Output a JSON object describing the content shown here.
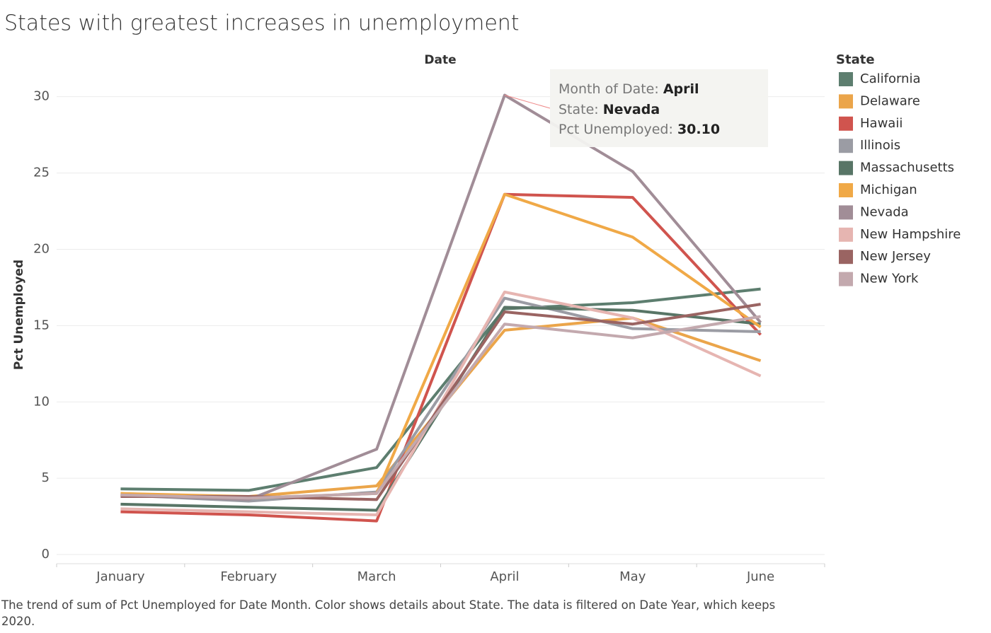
{
  "chart_data": {
    "type": "line",
    "title": "States with greatest increases in unemployment",
    "x_label": "Date",
    "y_label": "Pct Unemployed",
    "legend_title": "State",
    "legend_position": "right",
    "grid": true,
    "caption": "The trend of sum of Pct Unemployed for Date Month.  Color shows details about State. The data is filtered on Date Year, which keeps 2020.",
    "tooltip": {
      "month_label": "Month of Date:",
      "month": "April",
      "state_label": "State:",
      "state": "Nevada",
      "value_label": "Pct Unemployed:",
      "value": "30.10"
    },
    "categories": [
      "January",
      "February",
      "March",
      "April",
      "May",
      "June"
    ],
    "ylim": [
      -0.6,
      31.7
    ],
    "yticks": [
      0,
      5,
      10,
      15,
      20,
      25,
      30
    ],
    "series": [
      {
        "name": "California",
        "color": "#5d7e6f",
        "values": [
          4.3,
          4.2,
          5.7,
          16.1,
          16.5,
          17.4
        ]
      },
      {
        "name": "Delaware",
        "color": "#eba54a",
        "values": [
          4.0,
          3.8,
          4.5,
          14.7,
          15.5,
          12.7
        ]
      },
      {
        "name": "Hawaii",
        "color": "#d0544e",
        "values": [
          2.8,
          2.6,
          2.2,
          23.6,
          23.4,
          14.4
        ]
      },
      {
        "name": "Illinois",
        "color": "#9b9ca4",
        "values": [
          3.9,
          3.5,
          4.1,
          16.8,
          14.8,
          14.6
        ]
      },
      {
        "name": "Massachusetts",
        "color": "#587566",
        "values": [
          3.3,
          3.1,
          2.9,
          16.2,
          16.0,
          15.1
        ]
      },
      {
        "name": "Michigan",
        "color": "#f0a947",
        "values": [
          4.0,
          3.7,
          4.0,
          23.6,
          20.8,
          14.9
        ]
      },
      {
        "name": "Nevada",
        "color": "#a18d97",
        "values": [
          3.9,
          3.6,
          6.9,
          30.1,
          25.1,
          15.2
        ]
      },
      {
        "name": "New Hampshire",
        "color": "#e6b5b1",
        "values": [
          3.0,
          2.8,
          2.6,
          17.2,
          15.5,
          11.7
        ]
      },
      {
        "name": "New Jersey",
        "color": "#9a6462",
        "values": [
          3.8,
          3.8,
          3.6,
          15.9,
          15.1,
          16.4
        ]
      },
      {
        "name": "New York",
        "color": "#c3a9ae",
        "values": [
          3.9,
          3.7,
          4.0,
          15.1,
          14.2,
          15.6
        ]
      }
    ]
  }
}
